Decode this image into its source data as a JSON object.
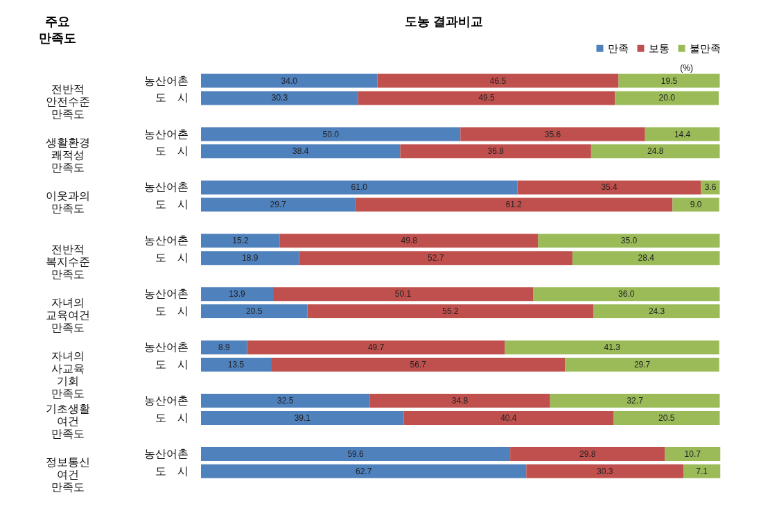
{
  "chart_data": {
    "type": "bar",
    "title": "도농 결과비교",
    "orientation": "horizontal",
    "stacked": true,
    "legend": "top right",
    "tick_labels": false,
    "xlim": [
      0,
      100.2
    ],
    "categories": [
      "농산어촌",
      "도　시",
      "농산어촌",
      "도　시",
      "농산어촌",
      "도　시",
      "농산어촌",
      "도　시",
      "농산어촌",
      "도　시",
      "농산어촌",
      "도　시",
      "농산어촌",
      "도　시",
      "농산어촌",
      "도　시"
    ],
    "annotations": [
      "전반적\n안전수준\n만족도",
      "생활환경\n쾌적성\n만족도",
      "이웃과의\n만족도",
      "전반적\n복지수준\n만족도",
      "자녀의\n교육여건\n만족도",
      "자녀의\n사교육\n기회\n만족도",
      "기초생활\n여건\n만족도",
      "정보통신\n여건\n만족도",
      "(%)",
      "주요\n만족도"
    ],
    "series": [
      {
        "name": "만족",
        "color": "#4f81bd",
        "values": [
          34.0,
          30.3,
          50.0,
          38.4,
          61.0,
          29.7,
          15.2,
          18.9,
          13.9,
          20.5,
          8.9,
          13.5,
          32.5,
          39.1,
          59.6,
          62.7
        ],
        "value_labels": [
          "34.0",
          "30.3",
          "50.0",
          "38.4",
          "61.0",
          "29.7",
          "15.2",
          "18.9",
          "13.9",
          "20.5",
          "8.9",
          "13.5",
          "32.5",
          "39.1",
          "59.6",
          "62.7"
        ]
      },
      {
        "name": "보통",
        "color": "#c0504d",
        "values": [
          46.5,
          49.5,
          35.6,
          36.8,
          35.4,
          61.2,
          49.8,
          52.7,
          50.1,
          55.2,
          49.7,
          56.7,
          34.8,
          40.4,
          29.8,
          30.3
        ],
        "value_labels": [
          "46.5",
          "49.5",
          "35.6",
          "36.8",
          "35.4",
          "61.2",
          "49.8",
          "52.7",
          "50.1",
          "55.2",
          "49.7",
          "56.7",
          "34.8",
          "40.4",
          "29.8",
          "30.3"
        ]
      },
      {
        "name": "불만족",
        "color": "#9bbb59",
        "values": [
          19.5,
          20.0,
          14.4,
          24.8,
          3.6,
          9.0,
          35.0,
          28.4,
          36.0,
          24.3,
          41.3,
          29.7,
          32.7,
          20.5,
          10.7,
          7.1
        ],
        "value_labels": [
          "19.5",
          "20.0",
          "14.4",
          "24.8",
          "3.6",
          "9.0",
          "35.0",
          "28.4",
          "36.0",
          "24.3",
          "41.3",
          "29.7",
          "32.7",
          "20.5",
          "10.7",
          "7.1"
        ]
      }
    ]
  }
}
